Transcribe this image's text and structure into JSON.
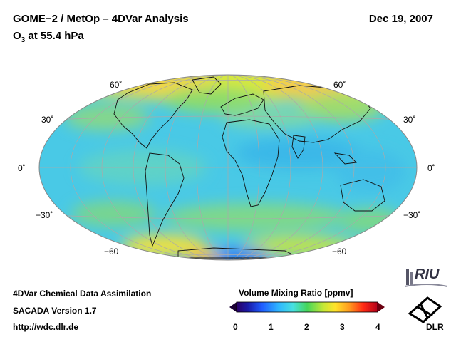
{
  "header": {
    "title": "GOME−2 / MetOp – 4DVar Analysis",
    "date": "Dec 19, 2007",
    "subtitle_prefix": "O",
    "subtitle_sub": "3",
    "subtitle_rest": " at 55.4 hPa"
  },
  "map": {
    "projection": "Hammer-Aitoff",
    "lat_labels_left": [
      "60˚",
      "30˚",
      "0˚",
      "−30˚",
      "−60"
    ],
    "lat_labels_right": [
      "60˚",
      "30˚",
      "0˚",
      "−30˚",
      "−60"
    ]
  },
  "footer": {
    "line1": "4DVar Chemical Data Assimilation",
    "line2": "SACADA Version 1.7",
    "line3": "http://wdc.dlr.de"
  },
  "colorbar": {
    "title": "Volume Mixing Ratio [ppmv]",
    "ticks": [
      "0",
      "1",
      "2",
      "3",
      "4"
    ],
    "range": [
      0,
      4
    ]
  },
  "logos": {
    "riu": "RIU",
    "dlr": "DLR"
  }
}
